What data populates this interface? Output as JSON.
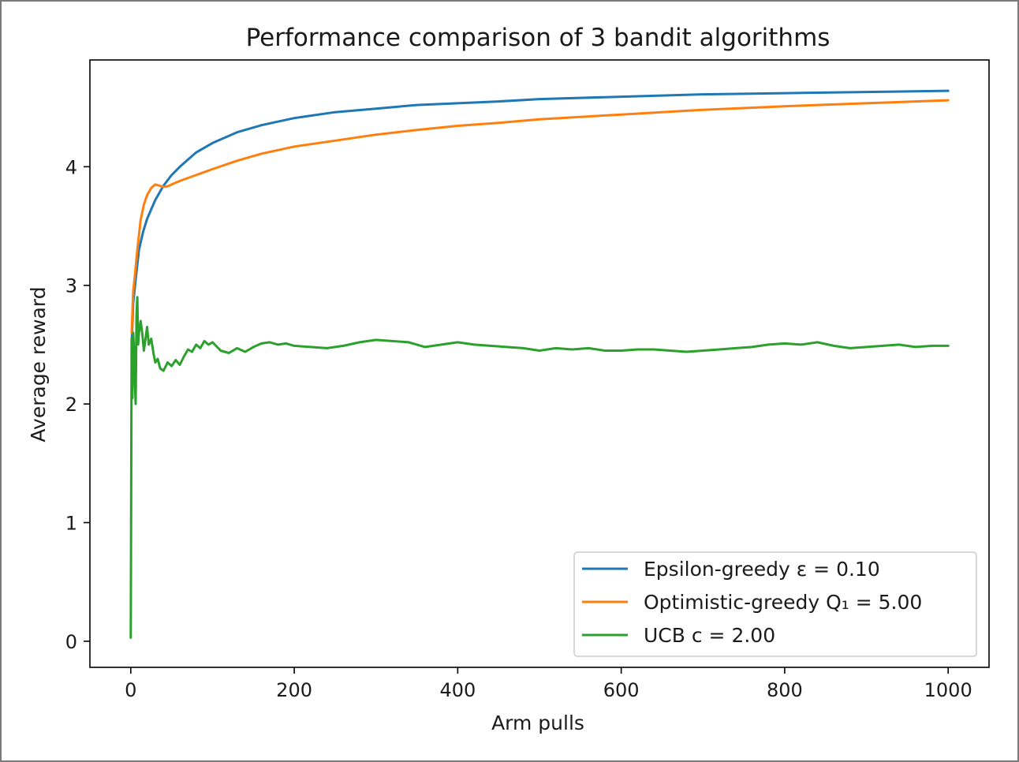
{
  "chart_data": {
    "type": "line",
    "title": "Performance comparison of 3 bandit algorithms",
    "xlabel": "Arm pulls",
    "ylabel": "Average reward",
    "xlim": [
      -50,
      1050
    ],
    "ylim": [
      -0.22,
      4.9
    ],
    "xticks": [
      0,
      200,
      400,
      600,
      800,
      1000
    ],
    "yticks": [
      0,
      1,
      2,
      3,
      4
    ],
    "grid": false,
    "legend_position": "lower-right",
    "series": [
      {
        "name": "Epsilon-greedy  ε =  0.10",
        "color": "#1f77b4",
        "x": [
          1,
          3,
          6,
          10,
          15,
          20,
          30,
          40,
          50,
          60,
          80,
          100,
          130,
          160,
          200,
          250,
          300,
          350,
          400,
          450,
          500,
          600,
          700,
          800,
          900,
          1000
        ],
        "y": [
          2.5,
          2.85,
          3.05,
          3.3,
          3.45,
          3.56,
          3.72,
          3.84,
          3.93,
          4.0,
          4.12,
          4.2,
          4.29,
          4.35,
          4.41,
          4.46,
          4.49,
          4.52,
          4.535,
          4.55,
          4.57,
          4.59,
          4.61,
          4.62,
          4.63,
          4.64
        ]
      },
      {
        "name": "Optimistic-greedy  Q₁ =  5.00",
        "color": "#ff7f0e",
        "x": [
          1,
          3,
          5,
          8,
          12,
          16,
          20,
          25,
          30,
          35,
          40,
          45,
          50,
          60,
          80,
          100,
          130,
          160,
          200,
          250,
          300,
          350,
          400,
          450,
          500,
          600,
          700,
          800,
          900,
          1000
        ],
        "y": [
          2.6,
          2.95,
          3.08,
          3.3,
          3.55,
          3.68,
          3.76,
          3.82,
          3.85,
          3.84,
          3.83,
          3.835,
          3.85,
          3.88,
          3.93,
          3.98,
          4.05,
          4.11,
          4.17,
          4.22,
          4.27,
          4.31,
          4.345,
          4.37,
          4.4,
          4.44,
          4.48,
          4.51,
          4.535,
          4.56
        ]
      },
      {
        "name": "UCB  c =  2.00",
        "color": "#2ca02c",
        "x": [
          0,
          1,
          2,
          3,
          4,
          5,
          6,
          7,
          8,
          9,
          10,
          12,
          14,
          16,
          18,
          20,
          22,
          25,
          28,
          30,
          33,
          36,
          40,
          45,
          50,
          55,
          60,
          65,
          70,
          75,
          80,
          85,
          90,
          95,
          100,
          110,
          120,
          130,
          140,
          150,
          160,
          170,
          180,
          190,
          200,
          220,
          240,
          260,
          280,
          300,
          320,
          340,
          360,
          380,
          400,
          420,
          440,
          460,
          480,
          500,
          520,
          540,
          560,
          580,
          600,
          620,
          640,
          660,
          680,
          700,
          720,
          740,
          760,
          780,
          800,
          820,
          840,
          860,
          880,
          900,
          920,
          940,
          960,
          980,
          1000
        ],
        "y": [
          0.03,
          2.55,
          2.05,
          2.6,
          2.45,
          2.2,
          2.0,
          2.75,
          2.9,
          2.5,
          2.6,
          2.7,
          2.6,
          2.45,
          2.55,
          2.65,
          2.5,
          2.55,
          2.42,
          2.35,
          2.38,
          2.3,
          2.28,
          2.35,
          2.32,
          2.37,
          2.33,
          2.4,
          2.46,
          2.44,
          2.5,
          2.47,
          2.53,
          2.5,
          2.52,
          2.45,
          2.43,
          2.47,
          2.44,
          2.48,
          2.51,
          2.52,
          2.5,
          2.51,
          2.49,
          2.48,
          2.47,
          2.49,
          2.52,
          2.54,
          2.53,
          2.52,
          2.48,
          2.5,
          2.52,
          2.5,
          2.49,
          2.48,
          2.47,
          2.45,
          2.47,
          2.46,
          2.47,
          2.45,
          2.45,
          2.46,
          2.46,
          2.45,
          2.44,
          2.45,
          2.46,
          2.47,
          2.48,
          2.5,
          2.51,
          2.5,
          2.52,
          2.49,
          2.47,
          2.48,
          2.49,
          2.5,
          2.48,
          2.49,
          2.49
        ]
      }
    ]
  }
}
